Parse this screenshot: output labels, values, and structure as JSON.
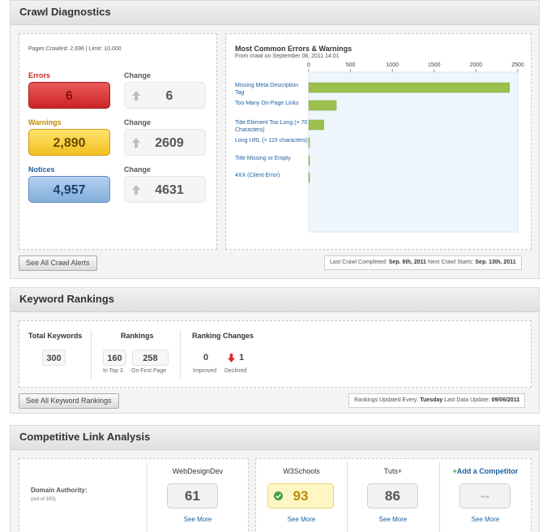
{
  "crawl": {
    "title": "Crawl Diagnostics",
    "pages_crawled": "Pages Crawled: 2,696 | Limit: 10,000",
    "errors_label": "Errors",
    "errors_value": "6",
    "warnings_label": "Warnings",
    "warnings_value": "2,890",
    "notices_label": "Notices",
    "notices_value": "4,957",
    "change_label": "Change",
    "errors_change": "6",
    "warnings_change": "2609",
    "notices_change": "4631",
    "see_all_button": "See All Crawl Alerts",
    "last_crawl_label": "Last Crawl Completed:",
    "last_crawl_value": "Sep. 6th, 2011",
    "next_crawl_label": "Next Crawl Starts:",
    "next_crawl_value": "Sep. 13th, 2011",
    "colors": {
      "errors": "#d93a3a",
      "warnings": "#f8d13e",
      "notices": "#9dbfe5"
    }
  },
  "chart_data": {
    "type": "bar",
    "orientation": "horizontal",
    "title": "Most Common Errors & Warnings",
    "subtitle": "From crawl on September 06, 2011 14:01",
    "categories": [
      "Missing Meta Description Tag",
      "Too Many On-Page Links",
      "Title Element Too Long (> 70 Characters)",
      "Long URL (> 115 characters)",
      "Title Missing or Empty",
      "4XX (Client Error)"
    ],
    "values": [
      2400,
      330,
      180,
      6,
      4,
      2
    ],
    "xlim": [
      0,
      2500
    ],
    "x_ticks": [
      0,
      500,
      1000,
      1500,
      2000,
      2500
    ],
    "bar_color": "#9cc04e",
    "plot_background": "#eef6fc"
  },
  "keywords": {
    "title": "Keyword Rankings",
    "total_label": "Total Keywords",
    "total_value": "300",
    "rankings_label": "Rankings",
    "top3_value": "160",
    "top3_caption": "In Top 3",
    "first_page_value": "258",
    "first_page_caption": "On First Page",
    "changes_label": "Ranking Changes",
    "improved_value": "0",
    "improved_caption": "Improved",
    "declined_value": "1",
    "declined_caption": "Declined",
    "see_all_button": "See All Keyword Rankings",
    "updated_label": "Rankings Updated Every:",
    "updated_value": "Tuesday",
    "last_update_label": "Last Data Update:",
    "last_update_value": "09/06/2011"
  },
  "competitive": {
    "title": "Competitive Link Analysis",
    "domain_authority_label": "Domain Authority:",
    "domain_authority_sub": "(out of 100)",
    "sites": [
      {
        "name": "WebDesignDev",
        "score": "61",
        "link": "See More"
      },
      {
        "name": "W3Schools",
        "score": "93",
        "link": "See More"
      },
      {
        "name": "Tuts+",
        "score": "86",
        "link": "See More"
      }
    ],
    "add_competitor": "Add a Competitor",
    "add_competitor_score": "--",
    "add_competitor_link": "See More"
  }
}
